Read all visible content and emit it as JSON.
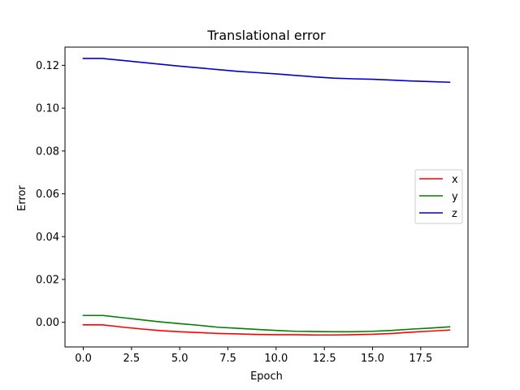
{
  "chart_data": {
    "type": "line",
    "title": "Translational error",
    "xlabel": "Epoch",
    "ylabel": "Error",
    "xlim": [
      -0.95,
      19.95
    ],
    "ylim": [
      -0.0115,
      0.1285
    ],
    "xticks": [
      0.0,
      2.5,
      5.0,
      7.5,
      10.0,
      12.5,
      15.0,
      17.5
    ],
    "xtick_labels": [
      "0.0",
      "2.5",
      "5.0",
      "7.5",
      "10.0",
      "12.5",
      "15.0",
      "17.5"
    ],
    "yticks": [
      0.0,
      0.02,
      0.04,
      0.06,
      0.08,
      0.1,
      0.12
    ],
    "ytick_labels": [
      "0.00",
      "0.02",
      "0.04",
      "0.06",
      "0.08",
      "0.10",
      "0.12"
    ],
    "grid": false,
    "legend_position": "center-right",
    "x": [
      0,
      1,
      2,
      3,
      4,
      5,
      6,
      7,
      8,
      9,
      10,
      11,
      12,
      13,
      14,
      15,
      16,
      17,
      18,
      19
    ],
    "series": [
      {
        "name": "x",
        "color": "#ff0000",
        "values": [
          -0.0012,
          -0.0012,
          -0.0022,
          -0.0031,
          -0.0039,
          -0.0044,
          -0.0048,
          -0.0052,
          -0.0054,
          -0.0057,
          -0.0058,
          -0.0058,
          -0.0059,
          -0.0059,
          -0.0058,
          -0.0056,
          -0.0052,
          -0.0046,
          -0.0041,
          -0.0036
        ]
      },
      {
        "name": "y",
        "color": "#008000",
        "values": [
          0.0032,
          0.0032,
          0.0022,
          0.0012,
          0.0002,
          -0.0006,
          -0.0014,
          -0.0023,
          -0.0028,
          -0.0033,
          -0.0038,
          -0.0042,
          -0.0043,
          -0.0044,
          -0.0044,
          -0.0042,
          -0.0038,
          -0.0032,
          -0.0027,
          -0.0021
        ]
      },
      {
        "name": "z",
        "color": "#0000cc",
        "values": [
          0.1232,
          0.1232,
          0.1223,
          0.1214,
          0.1205,
          0.1196,
          0.1188,
          0.118,
          0.1172,
          0.1166,
          0.116,
          0.1153,
          0.1146,
          0.114,
          0.1137,
          0.1135,
          0.1131,
          0.1127,
          0.1124,
          0.1121
        ]
      }
    ]
  }
}
